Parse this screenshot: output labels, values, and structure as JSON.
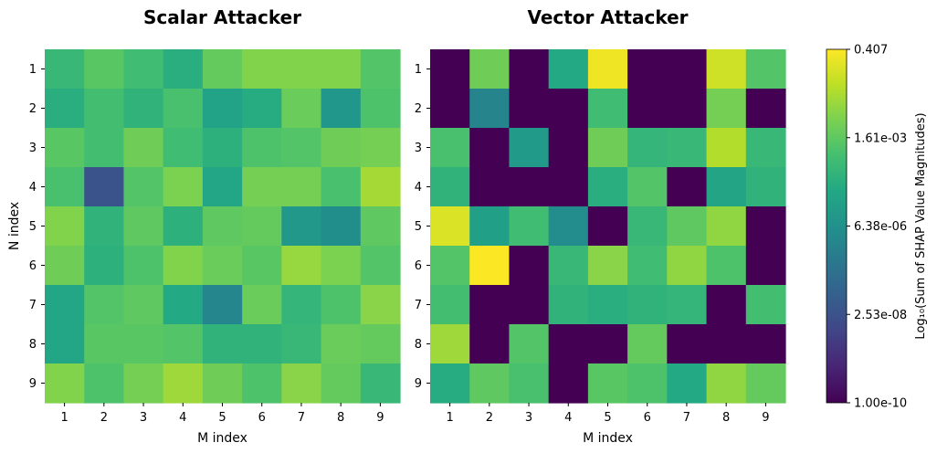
{
  "chart_data": [
    {
      "type": "heatmap",
      "title": "Scalar Attacker",
      "xlabel": "M index",
      "ylabel": "N index",
      "x_ticks": [
        "1",
        "2",
        "3",
        "4",
        "5",
        "6",
        "7",
        "8",
        "9"
      ],
      "y_ticks": [
        "1",
        "2",
        "3",
        "4",
        "5",
        "6",
        "7",
        "8",
        "9"
      ],
      "value_scale": "log10",
      "values_log10": [
        [
          -3.6,
          -2.9,
          -3.4,
          -4.0,
          -2.7,
          -2.2,
          -2.2,
          -2.2,
          -3.0
        ],
        [
          -4.0,
          -3.3,
          -3.8,
          -3.2,
          -4.5,
          -4.1,
          -2.6,
          -5.0,
          -3.1
        ],
        [
          -2.9,
          -3.3,
          -2.5,
          -3.4,
          -3.9,
          -3.1,
          -3.0,
          -2.5,
          -2.4
        ],
        [
          -3.2,
          -7.5,
          -3.0,
          -2.3,
          -4.3,
          -2.4,
          -2.4,
          -3.2,
          -1.7
        ],
        [
          -2.2,
          -3.8,
          -2.8,
          -3.9,
          -2.8,
          -2.7,
          -4.9,
          -5.3,
          -2.8
        ],
        [
          -2.5,
          -3.9,
          -3.1,
          -2.2,
          -2.6,
          -2.9,
          -1.9,
          -2.3,
          -3.0
        ],
        [
          -4.3,
          -3.0,
          -2.8,
          -4.2,
          -5.6,
          -2.6,
          -3.7,
          -3.1,
          -2.1
        ],
        [
          -4.3,
          -2.9,
          -2.9,
          -3.0,
          -3.8,
          -3.8,
          -3.6,
          -2.6,
          -2.7
        ],
        [
          -2.2,
          -3.1,
          -2.4,
          -1.8,
          -2.5,
          -3.1,
          -2.1,
          -2.7,
          -3.6
        ]
      ]
    },
    {
      "type": "heatmap",
      "title": "Vector Attacker",
      "xlabel": "M index",
      "ylabel": "",
      "x_ticks": [
        "1",
        "2",
        "3",
        "4",
        "5",
        "6",
        "7",
        "8",
        "9"
      ],
      "y_ticks": [
        "1",
        "2",
        "3",
        "4",
        "5",
        "6",
        "7",
        "8",
        "9"
      ],
      "value_scale": "log10",
      "values_log10": [
        [
          -10.0,
          -2.5,
          -10.0,
          -4.2,
          -0.6,
          -10.0,
          -10.0,
          -1.1,
          -3.0
        ],
        [
          -10.0,
          -5.7,
          -10.0,
          -10.0,
          -3.4,
          -10.0,
          -10.0,
          -2.4,
          -10.0
        ],
        [
          -3.2,
          -10.0,
          -4.8,
          -10.0,
          -2.5,
          -3.7,
          -3.6,
          -1.5,
          -3.6
        ],
        [
          -3.8,
          -10.0,
          -10.0,
          -10.0,
          -4.0,
          -3.0,
          -10.0,
          -4.4,
          -3.8
        ],
        [
          -0.9,
          -4.6,
          -3.4,
          -5.4,
          -10.0,
          -3.6,
          -2.8,
          -2.0,
          -10.0
        ],
        [
          -3.0,
          -0.4,
          -10.0,
          -3.6,
          -2.1,
          -3.4,
          -2.0,
          -3.1,
          -10.0
        ],
        [
          -3.3,
          -10.0,
          -10.0,
          -3.8,
          -4.0,
          -3.8,
          -3.7,
          -10.0,
          -3.3
        ],
        [
          -1.8,
          -10.0,
          -3.0,
          -10.0,
          -10.0,
          -2.7,
          -10.0,
          -10.0,
          -10.0
        ],
        [
          -4.1,
          -2.8,
          -3.2,
          -10.0,
          -2.9,
          -3.1,
          -4.2,
          -2.0,
          -2.7
        ]
      ]
    }
  ],
  "colorbar": {
    "label": "Log₁₀(Sum of SHAP Value Magnitudes)",
    "colormap": "viridis",
    "tick_labels": [
      "1.00e-10",
      "2.53e-08",
      "6.38e-06",
      "1.61e-03",
      "0.407"
    ],
    "range_log10": [
      -10.0,
      -0.39
    ]
  }
}
